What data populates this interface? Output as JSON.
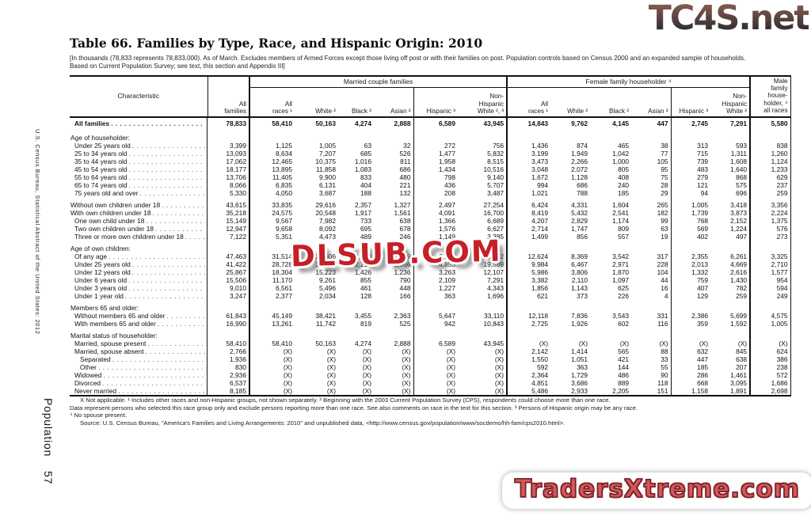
{
  "sidebar": {
    "vertical_text": "U.S. Census Bureau, Statistical Abstract of the United States: 2012",
    "section_label": "Population",
    "page_number": "57"
  },
  "watermarks": {
    "top_right": "TC4S.net",
    "center": "DLSUB.COM",
    "bottom_right": "TradersXtreme.com"
  },
  "title": "Table 66. Families by Type, Race, and Hispanic Origin: 2010",
  "note": "[In thousands (78,833 represents 78,833,000). As of March. Excludes members of Armed Forces except those living off post or with their families on post. Population controls based on Census 2000 and an expanded sample of households. Based on Current Population Survey; see text, this section and Appendix III]",
  "table": {
    "head": {
      "characteristic": "Characteristic",
      "all_families": "All\nfamilies",
      "married_group": "Married couple families",
      "female_group": "Female family householder ⁴",
      "male": "Male\nfamily\nhouse-\nholder, ⁴\nall races",
      "cols": [
        "All\nraces ¹",
        "White ²",
        "Black ²",
        "Asian ²",
        "Hispanic ³",
        "Non-\nHispanic\nWhite ², ³",
        "All\nraces ¹",
        "White ²",
        "Black ²",
        "Asian ²",
        "Hispanic ³",
        "Non-\nHispanic\nWhite ²"
      ]
    },
    "rows": [
      {
        "label": "All families",
        "bold": true,
        "indent": 1,
        "values": [
          "78,833",
          "58,410",
          "50,163",
          "4,274",
          "2,888",
          "6,589",
          "43,945",
          "14,843",
          "9,762",
          "4,145",
          "447",
          "2,745",
          "7,291",
          "5,580"
        ]
      },
      {
        "label": "Age of householder:",
        "section": true,
        "gap": true,
        "values": [
          "",
          "",
          "",
          "",
          "",
          "",
          "",
          "",
          "",
          "",
          "",
          "",
          "",
          ""
        ]
      },
      {
        "label": "Under 25 years old",
        "indent": 1,
        "values": [
          "3,399",
          "1,125",
          "1,005",
          "63",
          "32",
          "272",
          "756",
          "1,436",
          "874",
          "465",
          "38",
          "313",
          "593",
          "838"
        ]
      },
      {
        "label": "25 to 34 years old",
        "indent": 1,
        "values": [
          "13,093",
          "8,634",
          "7,207",
          "685",
          "526",
          "1,477",
          "5,832",
          "3,199",
          "1,949",
          "1,042",
          "77",
          "715",
          "1,311",
          "1,260"
        ]
      },
      {
        "label": "35 to 44 years old",
        "indent": 1,
        "values": [
          "17,062",
          "12,465",
          "10,375",
          "1,016",
          "811",
          "1,958",
          "8,515",
          "3,473",
          "2,266",
          "1,000",
          "105",
          "739",
          "1,608",
          "1,124"
        ]
      },
      {
        "label": "45 to 54 years old",
        "indent": 1,
        "values": [
          "18,177",
          "13,895",
          "11,858",
          "1,083",
          "686",
          "1,434",
          "10,516",
          "3,048",
          "2,072",
          "805",
          "95",
          "483",
          "1,640",
          "1,233"
        ]
      },
      {
        "label": "55 to 64 years old",
        "indent": 1,
        "values": [
          "13,706",
          "11,405",
          "9,900",
          "833",
          "480",
          "798",
          "9,140",
          "1,672",
          "1,128",
          "408",
          "75",
          "279",
          "868",
          "629"
        ]
      },
      {
        "label": "65 to 74 years old",
        "indent": 1,
        "values": [
          "8,066",
          "6,835",
          "6,131",
          "404",
          "221",
          "436",
          "5,707",
          "994",
          "686",
          "240",
          "28",
          "121",
          "575",
          "237"
        ]
      },
      {
        "label": "75 years old and over",
        "indent": 1,
        "values": [
          "5,330",
          "4,050",
          "3,687",
          "188",
          "132",
          "208",
          "3,487",
          "1,021",
          "788",
          "185",
          "29",
          "94",
          "696",
          "259"
        ]
      },
      {
        "label": "Without own children under 18",
        "indent": 0,
        "gap": true,
        "values": [
          "43,615",
          "33,835",
          "29,616",
          "2,357",
          "1,327",
          "2,497",
          "27,254",
          "6,424",
          "4,331",
          "1,604",
          "265",
          "1,005",
          "3,418",
          "3,356"
        ]
      },
      {
        "label": "With own children under 18",
        "indent": 0,
        "values": [
          "35,218",
          "24,575",
          "20,548",
          "1,917",
          "1,561",
          "4,091",
          "16,700",
          "8,419",
          "5,432",
          "2,541",
          "182",
          "1,739",
          "3,873",
          "2,224"
        ]
      },
      {
        "label": "One own child under 18",
        "indent": 1,
        "values": [
          "15,149",
          "9,567",
          "7,982",
          "733",
          "638",
          "1,366",
          "6,689",
          "4,207",
          "2,829",
          "1,174",
          "99",
          "768",
          "2,152",
          "1,375"
        ]
      },
      {
        "label": "Two own children under 18",
        "indent": 1,
        "values": [
          "12,947",
          "9,658",
          "8,092",
          "695",
          "678",
          "1,576",
          "6,627",
          "2,714",
          "1,747",
          "809",
          "63",
          "569",
          "1,224",
          "576"
        ]
      },
      {
        "label": "Three or more own children under 18",
        "indent": 1,
        "values": [
          "7,122",
          "5,351",
          "4,473",
          "489",
          "246",
          "1,149",
          "3,385",
          "1,499",
          "856",
          "557",
          "19",
          "402",
          "497",
          "273"
        ]
      },
      {
        "label": "Age of own children:",
        "section": true,
        "gap": true,
        "values": [
          "",
          "",
          "",
          "",
          "",
          "",
          "",
          "",
          "",
          "",
          "",
          "",
          "",
          ""
        ]
      },
      {
        "label": "Of any age",
        "indent": 1,
        "values": [
          "47,463",
          "31,514",
          "26,606",
          "2,480",
          "2,019",
          "5,211",
          "21,692",
          "12,624",
          "8,369",
          "3,542",
          "317",
          "2,355",
          "6,261",
          "3,325"
        ]
      },
      {
        "label": "Under 25 years old",
        "indent": 1,
        "values": [
          "41,422",
          "28,728",
          "24,189",
          "2,215",
          "1,866",
          "4,853",
          "19,589",
          "9,984",
          "6,467",
          "2,971",
          "228",
          "2,013",
          "4,669",
          "2,710"
        ]
      },
      {
        "label": "Under 12 years old",
        "indent": 1,
        "values": [
          "25,867",
          "18,304",
          "15,223",
          "1,426",
          "1,236",
          "3,263",
          "12,107",
          "5,986",
          "3,806",
          "1,870",
          "104",
          "1,332",
          "2,616",
          "1,577"
        ]
      },
      {
        "label": "Under 6 years old",
        "indent": 1,
        "values": [
          "15,506",
          "11,170",
          "9,261",
          "855",
          "790",
          "2,109",
          "7,291",
          "3,382",
          "2,110",
          "1,097",
          "44",
          "759",
          "1,430",
          "954"
        ]
      },
      {
        "label": "Under 3 years old",
        "indent": 1,
        "values": [
          "9,010",
          "6,561",
          "5,496",
          "461",
          "448",
          "1,227",
          "4,343",
          "1,856",
          "1,143",
          "625",
          "16",
          "407",
          "782",
          "594"
        ]
      },
      {
        "label": "Under 1 year old",
        "indent": 1,
        "values": [
          "3,247",
          "2,377",
          "2,034",
          "128",
          "166",
          "363",
          "1,696",
          "621",
          "373",
          "226",
          "4",
          "129",
          "259",
          "249"
        ]
      },
      {
        "label": "Members 65 and older:",
        "section": true,
        "gap": true,
        "values": [
          "",
          "",
          "",
          "",
          "",
          "",
          "",
          "",
          "",
          "",
          "",
          "",
          "",
          ""
        ]
      },
      {
        "label": "Without members 65 and older",
        "indent": 1,
        "values": [
          "61,843",
          "45,149",
          "38,421",
          "3,455",
          "2,363",
          "5,647",
          "33,110",
          "12,118",
          "7,836",
          "3,543",
          "331",
          "2,386",
          "5,699",
          "4,575"
        ]
      },
      {
        "label": "With members 65 and older",
        "indent": 1,
        "values": [
          "16,990",
          "13,261",
          "11,742",
          "819",
          "525",
          "942",
          "10,843",
          "2,725",
          "1,926",
          "602",
          "116",
          "359",
          "1,592",
          "1,005"
        ]
      },
      {
        "label": "Marital status of householder:",
        "section": true,
        "gap": true,
        "values": [
          "",
          "",
          "",
          "",
          "",
          "",
          "",
          "",
          "",
          "",
          "",
          "",
          "",
          ""
        ]
      },
      {
        "label": "Married, spouse present",
        "indent": 1,
        "values": [
          "58,410",
          "58,410",
          "50,163",
          "4,274",
          "2,888",
          "6,589",
          "43,945",
          "(X)",
          "(X)",
          "(X)",
          "(X)",
          "(X)",
          "(X)",
          "(X)"
        ]
      },
      {
        "label": "Married, spouse absent",
        "indent": 1,
        "values": [
          "2,766",
          "(X)",
          "(X)",
          "(X)",
          "(X)",
          "(X)",
          "(X)",
          "2,142",
          "1,414",
          "565",
          "88",
          "632",
          "845",
          "624"
        ]
      },
      {
        "label": "Separated",
        "indent": 2,
        "values": [
          "1,936",
          "(X)",
          "(X)",
          "(X)",
          "(X)",
          "(X)",
          "(X)",
          "1,550",
          "1,051",
          "421",
          "33",
          "447",
          "638",
          "386"
        ]
      },
      {
        "label": "Other",
        "indent": 2,
        "values": [
          "830",
          "(X)",
          "(X)",
          "(X)",
          "(X)",
          "(X)",
          "(X)",
          "592",
          "363",
          "144",
          "55",
          "185",
          "207",
          "238"
        ]
      },
      {
        "label": "Widowed",
        "indent": 1,
        "values": [
          "2,936",
          "(X)",
          "(X)",
          "(X)",
          "(X)",
          "(X)",
          "(X)",
          "2,364",
          "1,729",
          "486",
          "90",
          "286",
          "1,461",
          "572"
        ]
      },
      {
        "label": "Divorced",
        "indent": 1,
        "values": [
          "6,537",
          "(X)",
          "(X)",
          "(X)",
          "(X)",
          "(X)",
          "(X)",
          "4,851",
          "3,686",
          "889",
          "118",
          "668",
          "3,095",
          "1,686"
        ]
      },
      {
        "label": "Never married",
        "indent": 1,
        "values": [
          "8,185",
          "(X)",
          "(X)",
          "(X)",
          "(X)",
          "(X)",
          "(X)",
          "5,486",
          "2,933",
          "2,205",
          "151",
          "1,158",
          "1,891",
          "2,698"
        ]
      }
    ]
  },
  "footnotes": [
    "X Not applicable. ¹ Includes other races and non-Hispanic groups, not shown separately. ² Beginning with the 2003 Current Population Survey (CPS), respondents could choose more than one race.",
    "Data represent persons who selected this race group only and exclude persons reporting more than one race. See also comments on race in the text for this section. ³ Persons of Hispanic origin may be any race.",
    "⁴ No spouse present.",
    "Source: U.S. Census Bureau, “America’s Families and Living Arrangements: 2010” and unpublished data, <http://www.census.gov/population/www/socdemo/hh-fam/cps2010.html>."
  ]
}
